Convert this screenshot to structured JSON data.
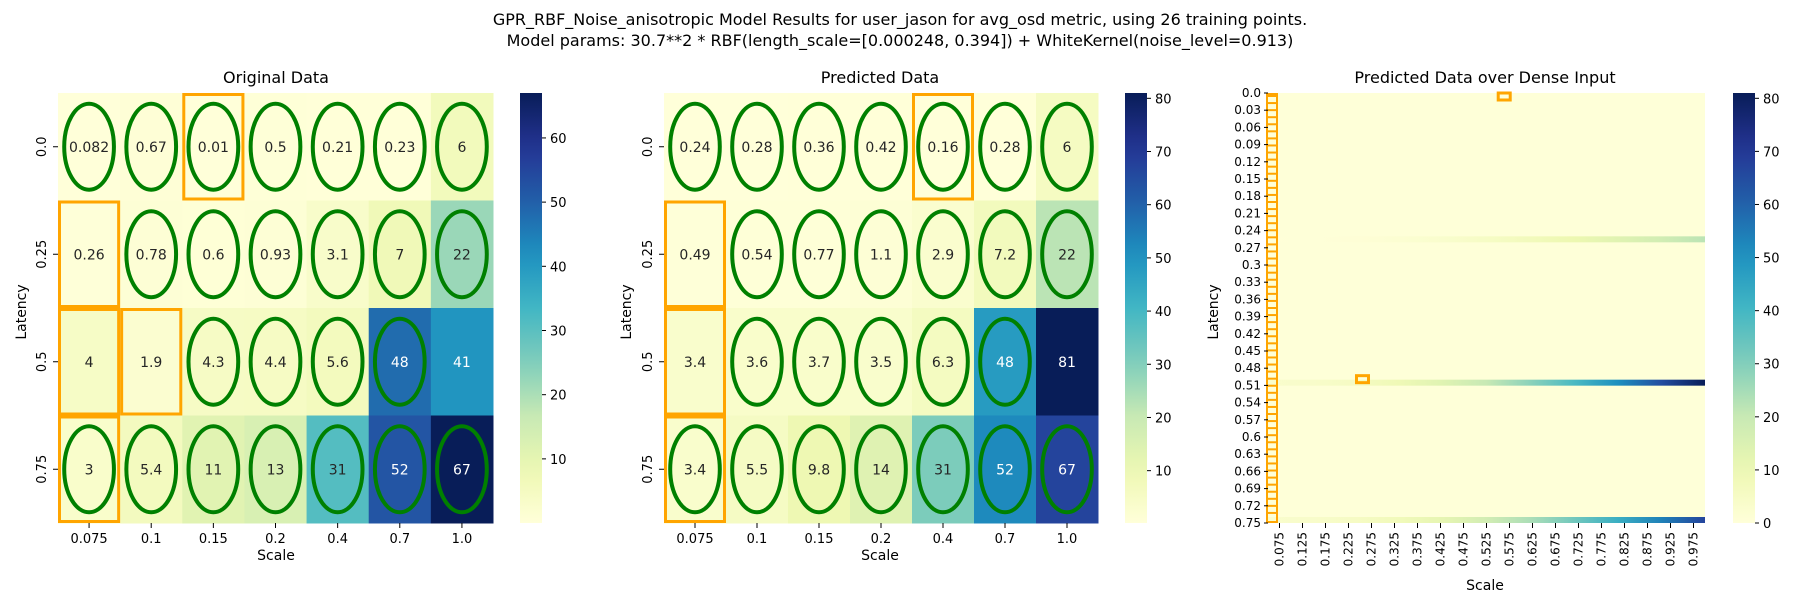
{
  "figure": {
    "suptitle_line1": "GPR_RBF_Noise_anisotropic Model Results for user_jason for avg_osd metric, using 26 training points.",
    "suptitle_line2": "Model params: 30.7**2 * RBF(length_scale=[0.000248, 0.394]) + WhiteKernel(noise_level=0.913)"
  },
  "chart_data": [
    {
      "type": "heatmap",
      "title": "Original Data",
      "xlabel": "Scale",
      "ylabel": "Latency",
      "x": [
        "0.075",
        "0.1",
        "0.15",
        "0.2",
        "0.4",
        "0.7",
        "1.0"
      ],
      "y": [
        "0.0",
        "0.25",
        "0.5",
        "0.75"
      ],
      "values": [
        [
          0.082,
          0.67,
          0.01,
          0.5,
          0.21,
          0.23,
          6
        ],
        [
          0.26,
          0.78,
          0.6,
          0.93,
          3.1,
          7,
          22
        ],
        [
          4,
          1.9,
          4.3,
          4.4,
          5.6,
          48,
          41
        ],
        [
          3,
          5.4,
          11,
          13,
          31,
          52,
          67
        ]
      ],
      "labels": [
        [
          "0.082",
          "0.67",
          "0.01",
          "0.5",
          "0.21",
          "0.23",
          "6"
        ],
        [
          "0.26",
          "0.78",
          "0.6",
          "0.93",
          "3.1",
          "7",
          "22"
        ],
        [
          "4",
          "1.9",
          "4.3",
          "4.4",
          "5.6",
          "48",
          "41"
        ],
        [
          "3",
          "5.4",
          "11",
          "13",
          "31",
          "52",
          "67"
        ]
      ],
      "colormap": "YlGnBu",
      "vmin": 0.01,
      "vmax": 67,
      "colorbar_ticks": [
        10,
        20,
        30,
        40,
        50,
        60
      ],
      "green_ellipses": [
        [
          0,
          0
        ],
        [
          0,
          1
        ],
        [
          0,
          2
        ],
        [
          0,
          3
        ],
        [
          0,
          4
        ],
        [
          0,
          5
        ],
        [
          0,
          6
        ],
        [
          1,
          1
        ],
        [
          1,
          2
        ],
        [
          1,
          3
        ],
        [
          1,
          4
        ],
        [
          1,
          5
        ],
        [
          1,
          6
        ],
        [
          2,
          2
        ],
        [
          2,
          3
        ],
        [
          2,
          4
        ],
        [
          2,
          5
        ],
        [
          3,
          0
        ],
        [
          3,
          1
        ],
        [
          3,
          2
        ],
        [
          3,
          3
        ],
        [
          3,
          4
        ],
        [
          3,
          5
        ],
        [
          3,
          6
        ]
      ],
      "orange_boxes": [
        [
          0,
          2
        ],
        [
          1,
          0
        ],
        [
          2,
          0
        ],
        [
          2,
          1
        ],
        [
          3,
          0
        ]
      ]
    },
    {
      "type": "heatmap",
      "title": "Predicted Data",
      "xlabel": "Scale",
      "ylabel": "Latency",
      "x": [
        "0.075",
        "0.1",
        "0.15",
        "0.2",
        "0.4",
        "0.7",
        "1.0"
      ],
      "y": [
        "0.0",
        "0.25",
        "0.5",
        "0.75"
      ],
      "values": [
        [
          0.24,
          0.28,
          0.36,
          0.42,
          0.16,
          0.28,
          6
        ],
        [
          0.49,
          0.54,
          0.77,
          1.1,
          2.9,
          7.2,
          22
        ],
        [
          3.4,
          3.6,
          3.7,
          3.5,
          6.3,
          48,
          81
        ],
        [
          3.4,
          5.5,
          9.8,
          14,
          31,
          52,
          67
        ]
      ],
      "labels": [
        [
          "0.24",
          "0.28",
          "0.36",
          "0.42",
          "0.16",
          "0.28",
          "6"
        ],
        [
          "0.49",
          "0.54",
          "0.77",
          "1.1",
          "2.9",
          "7.2",
          "22"
        ],
        [
          "3.4",
          "3.6",
          "3.7",
          "3.5",
          "6.3",
          "48",
          "81"
        ],
        [
          "3.4",
          "5.5",
          "9.8",
          "14",
          "31",
          "52",
          "67"
        ]
      ],
      "colormap": "YlGnBu",
      "vmin": 0.16,
      "vmax": 81,
      "colorbar_ticks": [
        10,
        20,
        30,
        40,
        50,
        60,
        70,
        80
      ],
      "green_ellipses": [
        [
          0,
          0
        ],
        [
          0,
          1
        ],
        [
          0,
          2
        ],
        [
          0,
          3
        ],
        [
          0,
          4
        ],
        [
          0,
          5
        ],
        [
          0,
          6
        ],
        [
          1,
          1
        ],
        [
          1,
          2
        ],
        [
          1,
          3
        ],
        [
          1,
          4
        ],
        [
          1,
          5
        ],
        [
          1,
          6
        ],
        [
          2,
          1
        ],
        [
          2,
          2
        ],
        [
          2,
          3
        ],
        [
          2,
          4
        ],
        [
          2,
          5
        ],
        [
          3,
          0
        ],
        [
          3,
          1
        ],
        [
          3,
          2
        ],
        [
          3,
          3
        ],
        [
          3,
          4
        ],
        [
          3,
          5
        ],
        [
          3,
          6
        ]
      ],
      "orange_boxes": [
        [
          0,
          4
        ],
        [
          1,
          0
        ],
        [
          2,
          0
        ],
        [
          3,
          0
        ]
      ]
    },
    {
      "type": "heatmap",
      "title": "Predicted Data over Dense Input",
      "xlabel": "Scale",
      "ylabel": "Latency",
      "x_ticks": [
        "0.075",
        "0.125",
        "0.175",
        "0.225",
        "0.275",
        "0.325",
        "0.375",
        "0.425",
        "0.475",
        "0.525",
        "0.575",
        "0.625",
        "0.675",
        "0.725",
        "0.775",
        "0.825",
        "0.875",
        "0.925",
        "0.975"
      ],
      "y_ticks": [
        "0.0",
        "0.03",
        "0.06",
        "0.09",
        "0.12",
        "0.15",
        "0.18",
        "0.21",
        "0.24",
        "0.27",
        "0.3",
        "0.33",
        "0.36",
        "0.39",
        "0.42",
        "0.45",
        "0.48",
        "0.51",
        "0.54",
        "0.57",
        "0.6",
        "0.63",
        "0.66",
        "0.69",
        "0.72",
        "0.75"
      ],
      "x_range": [
        0.075,
        1.0
      ],
      "y_range": [
        0.0,
        0.75
      ],
      "colormap": "YlGnBu",
      "vmin": 0,
      "vmax": 81,
      "colorbar_ticks": [
        0,
        10,
        20,
        30,
        40,
        50,
        60,
        70,
        80
      ],
      "high_rows": [
        {
          "latency": 0.25,
          "start": 0.2,
          "end": 22
        },
        {
          "latency": 0.5,
          "start": 3.4,
          "end": 81
        },
        {
          "latency": 0.75,
          "start": 3.4,
          "end": 67
        }
      ],
      "orange_marks": [
        {
          "scale": 0.575,
          "latency": 0.0
        },
        {
          "scale": 0.275,
          "latency": 0.5
        }
      ],
      "orange_column_scale": 0.075
    }
  ]
}
